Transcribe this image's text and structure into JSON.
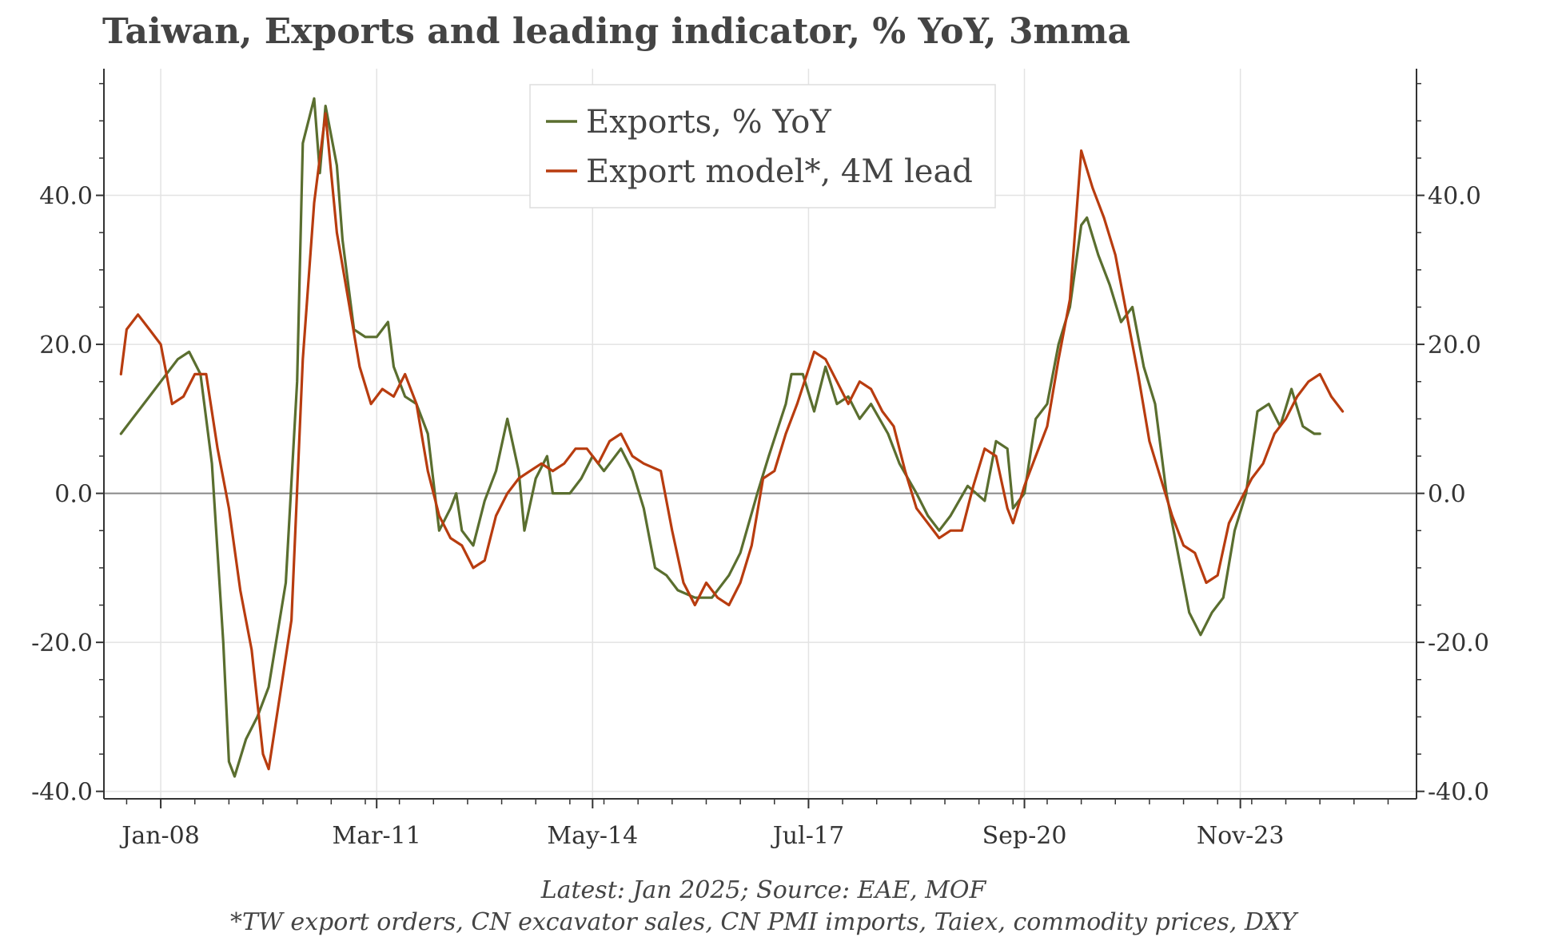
{
  "chart_data": {
    "type": "line",
    "title": "Taiwan, Exports and leading indicator, % YoY, 3mma",
    "source": "Latest: Jan 2025; Source: EAE, MOF",
    "footnote": "*TW export orders, CN excavator sales, CN PMI imports, Taiex, commodity prices, DXY",
    "ylim": [
      -41,
      57
    ],
    "y_ticks": [
      -40,
      -20,
      0,
      20,
      40
    ],
    "y_tick_labels": [
      "-40.0",
      "-20.0",
      "0.0",
      "20.0",
      "40.0"
    ],
    "x_range": [
      "2007-03",
      "2026-06"
    ],
    "x_ticks": [
      "2008-01",
      "2011-03",
      "2014-05",
      "2017-07",
      "2020-09",
      "2023-11"
    ],
    "x_tick_labels": [
      "Jan-08",
      "Mar-11",
      "May-14",
      "Jul-17",
      "Sep-20",
      "Nov-23"
    ],
    "grid": true,
    "legend_position": "top-center",
    "series": [
      {
        "name": "Exports, % YoY",
        "color": "#5a6e2f",
        "points": [
          [
            "2007-06",
            8
          ],
          [
            "2007-08",
            10
          ],
          [
            "2007-11",
            13
          ],
          [
            "2008-01",
            15
          ],
          [
            "2008-04",
            18
          ],
          [
            "2008-06",
            19
          ],
          [
            "2008-08",
            16
          ],
          [
            "2008-10",
            4
          ],
          [
            "2008-12",
            -20
          ],
          [
            "2009-01",
            -36
          ],
          [
            "2009-02",
            -38
          ],
          [
            "2009-04",
            -33
          ],
          [
            "2009-06",
            -30
          ],
          [
            "2009-08",
            -26
          ],
          [
            "2009-11",
            -12
          ],
          [
            "2010-01",
            15
          ],
          [
            "2010-02",
            47
          ],
          [
            "2010-04",
            53
          ],
          [
            "2010-05",
            43
          ],
          [
            "2010-06",
            52
          ],
          [
            "2010-08",
            44
          ],
          [
            "2010-09",
            34
          ],
          [
            "2010-11",
            22
          ],
          [
            "2011-01",
            21
          ],
          [
            "2011-03",
            21
          ],
          [
            "2011-05",
            23
          ],
          [
            "2011-06",
            17
          ],
          [
            "2011-08",
            13
          ],
          [
            "2011-10",
            12
          ],
          [
            "2011-12",
            8
          ],
          [
            "2012-02",
            -5
          ],
          [
            "2012-04",
            -2
          ],
          [
            "2012-05",
            0
          ],
          [
            "2012-06",
            -5
          ],
          [
            "2012-08",
            -7
          ],
          [
            "2012-10",
            -1
          ],
          [
            "2012-12",
            3
          ],
          [
            "2013-02",
            10
          ],
          [
            "2013-04",
            3
          ],
          [
            "2013-05",
            -5
          ],
          [
            "2013-07",
            2
          ],
          [
            "2013-09",
            5
          ],
          [
            "2013-10",
            0
          ],
          [
            "2014-01",
            0
          ],
          [
            "2014-03",
            2
          ],
          [
            "2014-05",
            5
          ],
          [
            "2014-07",
            3
          ],
          [
            "2014-10",
            6
          ],
          [
            "2014-12",
            3
          ],
          [
            "2015-02",
            -2
          ],
          [
            "2015-04",
            -10
          ],
          [
            "2015-06",
            -11
          ],
          [
            "2015-08",
            -13
          ],
          [
            "2015-11",
            -14
          ],
          [
            "2016-02",
            -14
          ],
          [
            "2016-05",
            -11
          ],
          [
            "2016-07",
            -8
          ],
          [
            "2016-10",
            0
          ],
          [
            "2016-12",
            5
          ],
          [
            "2017-03",
            12
          ],
          [
            "2017-04",
            16
          ],
          [
            "2017-06",
            16
          ],
          [
            "2017-08",
            11
          ],
          [
            "2017-10",
            17
          ],
          [
            "2017-12",
            12
          ],
          [
            "2018-02",
            13
          ],
          [
            "2018-04",
            10
          ],
          [
            "2018-06",
            12
          ],
          [
            "2018-09",
            8
          ],
          [
            "2018-11",
            4
          ],
          [
            "2019-02",
            0
          ],
          [
            "2019-04",
            -3
          ],
          [
            "2019-06",
            -5
          ],
          [
            "2019-08",
            -3
          ],
          [
            "2019-11",
            1
          ],
          [
            "2020-02",
            -1
          ],
          [
            "2020-04",
            7
          ],
          [
            "2020-06",
            6
          ],
          [
            "2020-07",
            -2
          ],
          [
            "2020-09",
            0
          ],
          [
            "2020-11",
            10
          ],
          [
            "2021-01",
            12
          ],
          [
            "2021-03",
            20
          ],
          [
            "2021-05",
            25
          ],
          [
            "2021-07",
            36
          ],
          [
            "2021-08",
            37
          ],
          [
            "2021-10",
            32
          ],
          [
            "2021-12",
            28
          ],
          [
            "2022-02",
            23
          ],
          [
            "2022-04",
            25
          ],
          [
            "2022-06",
            17
          ],
          [
            "2022-08",
            12
          ],
          [
            "2022-10",
            0
          ],
          [
            "2022-12",
            -8
          ],
          [
            "2023-02",
            -16
          ],
          [
            "2023-04",
            -19
          ],
          [
            "2023-06",
            -16
          ],
          [
            "2023-08",
            -14
          ],
          [
            "2023-10",
            -5
          ],
          [
            "2023-12",
            0
          ],
          [
            "2024-02",
            11
          ],
          [
            "2024-04",
            12
          ],
          [
            "2024-06",
            9
          ],
          [
            "2024-08",
            14
          ],
          [
            "2024-10",
            9
          ],
          [
            "2024-12",
            8
          ],
          [
            "2025-01",
            8
          ]
        ]
      },
      {
        "name": "Export model*, 4M lead",
        "color": "#b83c0f",
        "points": [
          [
            "2007-06",
            16
          ],
          [
            "2007-07",
            22
          ],
          [
            "2007-09",
            24
          ],
          [
            "2007-11",
            22
          ],
          [
            "2008-01",
            20
          ],
          [
            "2008-03",
            12
          ],
          [
            "2008-05",
            13
          ],
          [
            "2008-07",
            16
          ],
          [
            "2008-09",
            16
          ],
          [
            "2008-11",
            6
          ],
          [
            "2009-01",
            -2
          ],
          [
            "2009-03",
            -13
          ],
          [
            "2009-05",
            -21
          ],
          [
            "2009-07",
            -35
          ],
          [
            "2009-08",
            -37
          ],
          [
            "2009-10",
            -27
          ],
          [
            "2009-12",
            -17
          ],
          [
            "2010-02",
            18
          ],
          [
            "2010-04",
            39
          ],
          [
            "2010-06",
            51
          ],
          [
            "2010-08",
            35
          ],
          [
            "2010-10",
            26
          ],
          [
            "2010-12",
            17
          ],
          [
            "2011-02",
            12
          ],
          [
            "2011-04",
            14
          ],
          [
            "2011-06",
            13
          ],
          [
            "2011-08",
            16
          ],
          [
            "2011-10",
            12
          ],
          [
            "2011-12",
            3
          ],
          [
            "2012-02",
            -3
          ],
          [
            "2012-04",
            -6
          ],
          [
            "2012-06",
            -7
          ],
          [
            "2012-08",
            -10
          ],
          [
            "2012-10",
            -9
          ],
          [
            "2012-12",
            -3
          ],
          [
            "2013-02",
            0
          ],
          [
            "2013-04",
            2
          ],
          [
            "2013-06",
            3
          ],
          [
            "2013-08",
            4
          ],
          [
            "2013-10",
            3
          ],
          [
            "2013-12",
            4
          ],
          [
            "2014-02",
            6
          ],
          [
            "2014-04",
            6
          ],
          [
            "2014-06",
            4
          ],
          [
            "2014-08",
            7
          ],
          [
            "2014-10",
            8
          ],
          [
            "2014-12",
            5
          ],
          [
            "2015-02",
            4
          ],
          [
            "2015-05",
            3
          ],
          [
            "2015-07",
            -5
          ],
          [
            "2015-09",
            -12
          ],
          [
            "2015-11",
            -15
          ],
          [
            "2016-01",
            -12
          ],
          [
            "2016-03",
            -14
          ],
          [
            "2016-05",
            -15
          ],
          [
            "2016-07",
            -12
          ],
          [
            "2016-09",
            -7
          ],
          [
            "2016-11",
            2
          ],
          [
            "2017-01",
            3
          ],
          [
            "2017-03",
            8
          ],
          [
            "2017-05",
            12
          ],
          [
            "2017-08",
            19
          ],
          [
            "2017-10",
            18
          ],
          [
            "2017-12",
            15
          ],
          [
            "2018-02",
            12
          ],
          [
            "2018-04",
            15
          ],
          [
            "2018-06",
            14
          ],
          [
            "2018-08",
            11
          ],
          [
            "2018-10",
            9
          ],
          [
            "2018-12",
            3
          ],
          [
            "2019-02",
            -2
          ],
          [
            "2019-04",
            -4
          ],
          [
            "2019-06",
            -6
          ],
          [
            "2019-08",
            -5
          ],
          [
            "2019-10",
            -5
          ],
          [
            "2019-12",
            1
          ],
          [
            "2020-02",
            6
          ],
          [
            "2020-04",
            5
          ],
          [
            "2020-06",
            -2
          ],
          [
            "2020-07",
            -4
          ],
          [
            "2020-09",
            1
          ],
          [
            "2020-11",
            5
          ],
          [
            "2021-01",
            9
          ],
          [
            "2021-03",
            18
          ],
          [
            "2021-05",
            26
          ],
          [
            "2021-07",
            46
          ],
          [
            "2021-09",
            41
          ],
          [
            "2021-11",
            37
          ],
          [
            "2022-01",
            32
          ],
          [
            "2022-03",
            24
          ],
          [
            "2022-05",
            16
          ],
          [
            "2022-07",
            7
          ],
          [
            "2022-09",
            2
          ],
          [
            "2022-11",
            -3
          ],
          [
            "2023-01",
            -7
          ],
          [
            "2023-03",
            -8
          ],
          [
            "2023-05",
            -12
          ],
          [
            "2023-07",
            -11
          ],
          [
            "2023-09",
            -4
          ],
          [
            "2023-11",
            -1
          ],
          [
            "2024-01",
            2
          ],
          [
            "2024-03",
            4
          ],
          [
            "2024-05",
            8
          ],
          [
            "2024-07",
            10
          ],
          [
            "2024-09",
            13
          ],
          [
            "2024-11",
            15
          ],
          [
            "2025-01",
            16
          ],
          [
            "2025-03",
            13
          ],
          [
            "2025-05",
            11
          ]
        ]
      }
    ]
  }
}
